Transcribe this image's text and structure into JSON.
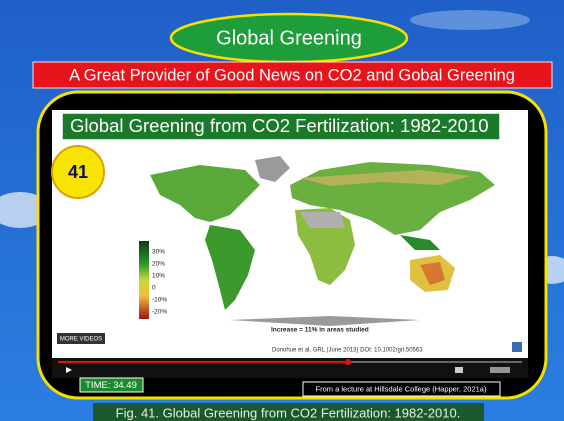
{
  "slide": {
    "title": "Global Greening",
    "subtitle": "A Great Provider of Good News on CO2 and Gobal Greening",
    "video": {
      "title": "Global Greening from CO2 Fertilization: 1982-2010",
      "badge": "41",
      "legend": [
        "30%",
        "20%",
        "10%",
        "0",
        "-10%",
        "-20%"
      ],
      "note": "Increase = 11% in areas studied",
      "citation": "Donohue et al, GRL (June 2013) DOI: 10.1002/grl.50563",
      "more_videos": "MORE VIDEOS"
    },
    "time": "TIME: 34.49",
    "credit": "From a lecture at Hillsdale College (Happer, 2021a)",
    "caption": "Fig. 41. Global Greening from CO2 Fertilization: 1982-2010."
  }
}
